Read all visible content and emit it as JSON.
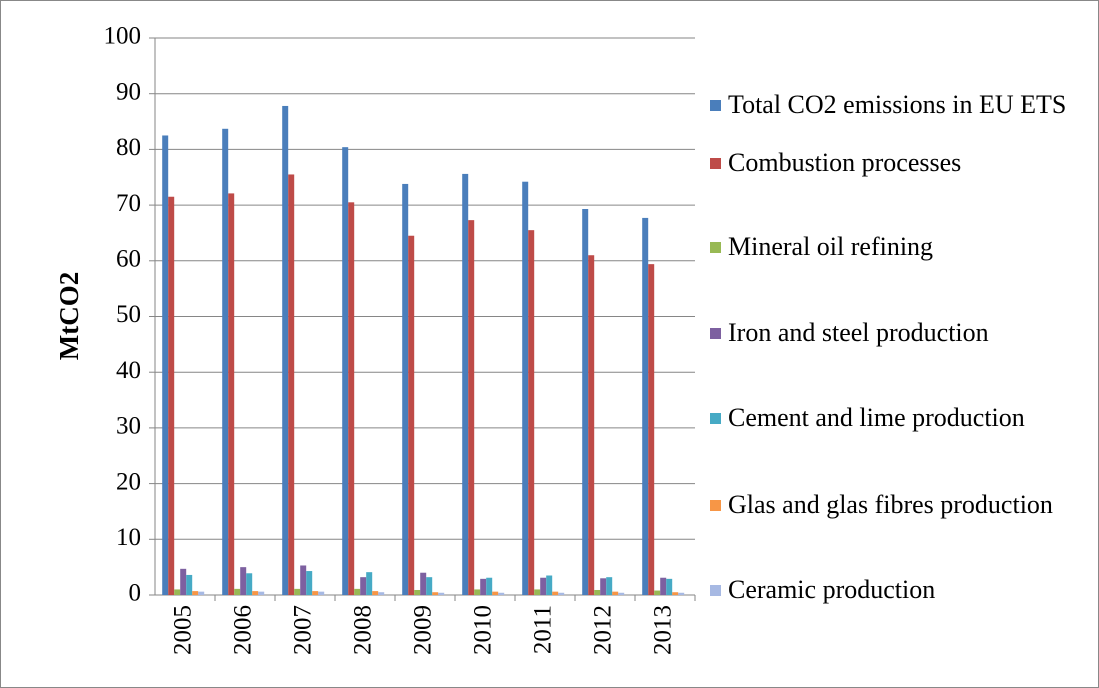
{
  "chart_data": {
    "type": "bar",
    "y_label": "MtCO2",
    "categories": [
      "2005",
      "2006",
      "2007",
      "2008",
      "2009",
      "2010",
      "2011",
      "2012",
      "2013"
    ],
    "series": [
      {
        "name": "Total CO2 emissions in EU ETS",
        "color": "#4a7ebb",
        "values": [
          82.5,
          83.7,
          87.8,
          80.4,
          73.8,
          75.6,
          74.2,
          69.3,
          67.7
        ]
      },
      {
        "name": "Combustion processes",
        "color": "#be4b48",
        "values": [
          71.5,
          72.1,
          75.5,
          70.5,
          64.5,
          67.3,
          65.5,
          61.0,
          59.4
        ]
      },
      {
        "name": "Mineral oil refining",
        "color": "#98b954",
        "values": [
          1.0,
          1.1,
          1.1,
          1.1,
          0.9,
          1.0,
          1.0,
          0.9,
          0.8
        ]
      },
      {
        "name": "Iron and steel production",
        "color": "#7d60a0",
        "values": [
          4.7,
          5.0,
          5.3,
          3.2,
          4.0,
          2.9,
          3.1,
          3.0,
          3.1
        ]
      },
      {
        "name": "Cement and lime production",
        "color": "#46aac5",
        "values": [
          3.6,
          3.9,
          4.3,
          4.1,
          3.2,
          3.1,
          3.5,
          3.2,
          2.9
        ]
      },
      {
        "name": "Glas and glas fibres production",
        "color": "#f79646",
        "values": [
          0.7,
          0.7,
          0.7,
          0.7,
          0.5,
          0.6,
          0.6,
          0.6,
          0.5
        ]
      },
      {
        "name": "Ceramic production",
        "color": "#a7b9e3",
        "values": [
          0.6,
          0.6,
          0.6,
          0.5,
          0.4,
          0.4,
          0.4,
          0.4,
          0.4
        ]
      }
    ],
    "ylim": [
      0,
      100
    ],
    "yticks": [
      0,
      10,
      20,
      30,
      40,
      50,
      60,
      70,
      80,
      90,
      100
    ],
    "grid": true,
    "legend": "right"
  }
}
